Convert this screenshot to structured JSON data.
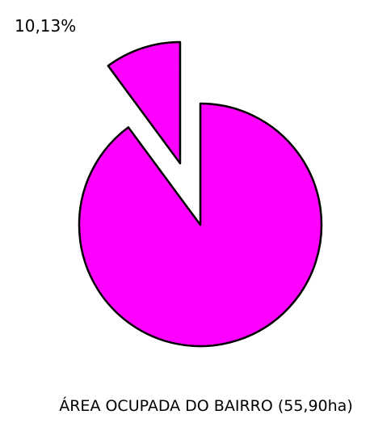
{
  "chart_data": {
    "type": "pie",
    "caption": "ÁREA OCUPADA DO BAIRRO (55,90ha)",
    "slices": [
      {
        "label": "10,13%",
        "value": 10.13,
        "color": "#ff00ff",
        "exploded": true
      },
      {
        "label": "",
        "value": 89.87,
        "color": "#ff00ff",
        "exploded": false
      }
    ]
  }
}
